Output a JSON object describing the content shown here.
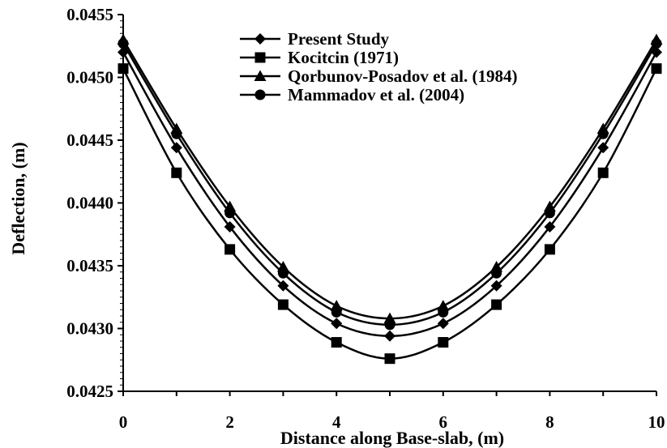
{
  "chart_data": {
    "type": "line",
    "title": "",
    "xlabel": "Distance along Base-slab, (m)",
    "ylabel": "Deflection, (m)",
    "xlim": [
      0,
      10
    ],
    "ylim": [
      0.0425,
      0.0455
    ],
    "x_ticks": [
      0,
      2,
      4,
      6,
      8,
      10
    ],
    "y_ticks": [
      0.0425,
      0.043,
      0.0435,
      0.044,
      0.0445,
      0.045,
      0.0455
    ],
    "x_tick_labels": [
      "0",
      "2",
      "4",
      "6",
      "8",
      "10"
    ],
    "y_tick_labels": [
      "0.0425",
      "0.0430",
      "0.0435",
      "0.0440",
      "0.0445",
      "0.0450",
      "0.0455"
    ],
    "grid": false,
    "legend_position": "top-center",
    "x": [
      0,
      1,
      2,
      3,
      4,
      5,
      6,
      7,
      8,
      9,
      10
    ],
    "series": [
      {
        "name": "Present Study",
        "marker": "diamond",
        "color": "#000000",
        "values": [
          0.0452,
          0.04444,
          0.04381,
          0.04334,
          0.04304,
          0.04294,
          0.04304,
          0.04334,
          0.04381,
          0.04444,
          0.0452
        ]
      },
      {
        "name": "Kocitcin (1971)",
        "marker": "square",
        "color": "#000000",
        "values": [
          0.04507,
          0.04424,
          0.04363,
          0.04319,
          0.04289,
          0.04276,
          0.04289,
          0.04319,
          0.04363,
          0.04424,
          0.04507
        ]
      },
      {
        "name": "Qorbunov-Posadov et al. (1984)",
        "marker": "triangle",
        "color": "#000000",
        "values": [
          0.0453,
          0.04459,
          0.04397,
          0.04349,
          0.04318,
          0.04308,
          0.04318,
          0.04349,
          0.04397,
          0.04459,
          0.0453
        ]
      },
      {
        "name": "Mammadov et al. (2004)",
        "marker": "circle",
        "color": "#000000",
        "values": [
          0.04527,
          0.04455,
          0.04392,
          0.04344,
          0.04313,
          0.04303,
          0.04313,
          0.04344,
          0.04392,
          0.04455,
          0.04527
        ]
      }
    ]
  }
}
